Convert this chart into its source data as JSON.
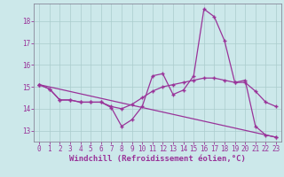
{
  "title": "",
  "xlabel": "Windchill (Refroidissement éolien,°C)",
  "ylabel": "",
  "background_color": "#cce8ea",
  "grid_color": "#aacccc",
  "line_color": "#993399",
  "spine_color": "#888899",
  "xlim": [
    -0.5,
    23.5
  ],
  "ylim": [
    12.5,
    18.8
  ],
  "yticks": [
    13,
    14,
    15,
    16,
    17,
    18
  ],
  "xticks": [
    0,
    1,
    2,
    3,
    4,
    5,
    6,
    7,
    8,
    9,
    10,
    11,
    12,
    13,
    14,
    15,
    16,
    17,
    18,
    19,
    20,
    21,
    22,
    23
  ],
  "line1_x": [
    0,
    1,
    2,
    3,
    4,
    5,
    6,
    7,
    8,
    9,
    10,
    11,
    12,
    13,
    14,
    15,
    16,
    17,
    18,
    19,
    20,
    21,
    22,
    23
  ],
  "line1_y": [
    15.1,
    14.9,
    14.4,
    14.4,
    14.3,
    14.3,
    14.3,
    14.05,
    13.2,
    13.5,
    14.1,
    15.5,
    15.6,
    14.65,
    14.85,
    15.5,
    18.55,
    18.2,
    17.1,
    15.2,
    15.3,
    13.2,
    12.8,
    12.7
  ],
  "line2_x": [
    0,
    1,
    2,
    3,
    4,
    5,
    6,
    7,
    8,
    9,
    10,
    11,
    12,
    13,
    14,
    15,
    16,
    17,
    18,
    19,
    20,
    21,
    22,
    23
  ],
  "line2_y": [
    15.1,
    14.9,
    14.4,
    14.4,
    14.3,
    14.3,
    14.3,
    14.1,
    14.0,
    14.2,
    14.5,
    14.8,
    15.0,
    15.1,
    15.2,
    15.3,
    15.4,
    15.4,
    15.3,
    15.2,
    15.2,
    14.8,
    14.3,
    14.1
  ],
  "line3_x": [
    0,
    23
  ],
  "line3_y": [
    15.1,
    12.7
  ],
  "marker": "+",
  "markersize": 3.5,
  "markeredgewidth": 1.0,
  "linewidth": 0.9,
  "tick_fontsize": 5.5,
  "label_fontsize": 6.5
}
